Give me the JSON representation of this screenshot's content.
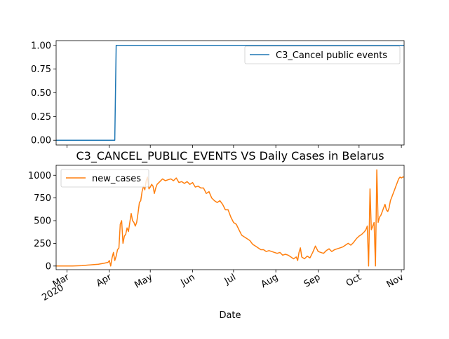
{
  "chart_data": [
    {
      "type": "line",
      "title": "",
      "xlabel": "",
      "ylabel": "",
      "ylim": [
        -0.05,
        1.05
      ],
      "yticks": [
        0.0,
        0.25,
        0.5,
        0.75,
        1.0
      ],
      "ytick_labels": [
        "0.00",
        "0.25",
        "0.50",
        "0.75",
        "1.00"
      ],
      "grid": false,
      "legend_position": "upper right",
      "series": [
        {
          "name": "C3_Cancel public events",
          "color": "#1f77b4",
          "x": [
            "2020-02-22",
            "2020-04-05",
            "2020-04-06",
            "2020-11-03"
          ],
          "y": [
            0,
            0,
            1,
            1
          ]
        }
      ]
    },
    {
      "type": "line",
      "title": "C3_CANCEL_PUBLIC_EVENTS VS Daily Cases in Belarus",
      "xlabel": "Date",
      "ylabel": "",
      "ylim": [
        -40,
        1110
      ],
      "yticks": [
        0,
        250,
        500,
        750,
        1000
      ],
      "ytick_labels": [
        "0",
        "250",
        "500",
        "750",
        "1000"
      ],
      "xlim": [
        "2020-02-22",
        "2020-11-03"
      ],
      "xticks": [
        {
          "date": "2020-03-01",
          "label": "Mar",
          "sublabel": "2020"
        },
        {
          "date": "2020-04-01",
          "label": "Apr",
          "sublabel": ""
        },
        {
          "date": "2020-05-01",
          "label": "May",
          "sublabel": ""
        },
        {
          "date": "2020-06-01",
          "label": "Jun",
          "sublabel": ""
        },
        {
          "date": "2020-07-01",
          "label": "Jul",
          "sublabel": ""
        },
        {
          "date": "2020-08-01",
          "label": "Aug",
          "sublabel": ""
        },
        {
          "date": "2020-09-01",
          "label": "Sep",
          "sublabel": ""
        },
        {
          "date": "2020-10-01",
          "label": "Oct",
          "sublabel": ""
        },
        {
          "date": "2020-11-01",
          "label": "Nov",
          "sublabel": ""
        }
      ],
      "grid": false,
      "legend_position": "upper left",
      "series": [
        {
          "name": "new_cases",
          "color": "#ff7f0e",
          "x": [
            "2020-02-22",
            "2020-03-05",
            "2020-03-12",
            "2020-03-16",
            "2020-03-20",
            "2020-03-24",
            "2020-03-28",
            "2020-03-31",
            "2020-04-01",
            "2020-04-02",
            "2020-04-03",
            "2020-04-04",
            "2020-04-05",
            "2020-04-06",
            "2020-04-07",
            "2020-04-08",
            "2020-04-09",
            "2020-04-10",
            "2020-04-11",
            "2020-04-12",
            "2020-04-13",
            "2020-04-14",
            "2020-04-15",
            "2020-04-16",
            "2020-04-17",
            "2020-04-18",
            "2020-04-19",
            "2020-04-20",
            "2020-04-21",
            "2020-04-22",
            "2020-04-23",
            "2020-04-24",
            "2020-04-25",
            "2020-04-26",
            "2020-04-27",
            "2020-04-28",
            "2020-04-29",
            "2020-04-30",
            "2020-05-01",
            "2020-05-02",
            "2020-05-03",
            "2020-05-04",
            "2020-05-05",
            "2020-05-06",
            "2020-05-08",
            "2020-05-10",
            "2020-05-12",
            "2020-05-14",
            "2020-05-16",
            "2020-05-18",
            "2020-05-20",
            "2020-05-22",
            "2020-05-24",
            "2020-05-26",
            "2020-05-28",
            "2020-05-30",
            "2020-06-01",
            "2020-06-03",
            "2020-06-05",
            "2020-06-07",
            "2020-06-09",
            "2020-06-11",
            "2020-06-13",
            "2020-06-15",
            "2020-06-17",
            "2020-06-19",
            "2020-06-21",
            "2020-06-23",
            "2020-06-25",
            "2020-06-27",
            "2020-06-29",
            "2020-07-01",
            "2020-07-03",
            "2020-07-05",
            "2020-07-07",
            "2020-07-09",
            "2020-07-11",
            "2020-07-13",
            "2020-07-15",
            "2020-07-17",
            "2020-07-19",
            "2020-07-21",
            "2020-07-23",
            "2020-07-25",
            "2020-07-27",
            "2020-07-29",
            "2020-07-31",
            "2020-08-02",
            "2020-08-04",
            "2020-08-06",
            "2020-08-08",
            "2020-08-10",
            "2020-08-12",
            "2020-08-14",
            "2020-08-16",
            "2020-08-17",
            "2020-08-18",
            "2020-08-19",
            "2020-08-20",
            "2020-08-22",
            "2020-08-24",
            "2020-08-26",
            "2020-08-28",
            "2020-08-30",
            "2020-09-01",
            "2020-09-03",
            "2020-09-05",
            "2020-09-07",
            "2020-09-09",
            "2020-09-11",
            "2020-09-13",
            "2020-09-15",
            "2020-09-17",
            "2020-09-19",
            "2020-09-21",
            "2020-09-23",
            "2020-09-25",
            "2020-09-27",
            "2020-09-29",
            "2020-10-01",
            "2020-10-03",
            "2020-10-05",
            "2020-10-06",
            "2020-10-07",
            "2020-10-08",
            "2020-10-09",
            "2020-10-10",
            "2020-10-11",
            "2020-10-12",
            "2020-10-13",
            "2020-10-14",
            "2020-10-15",
            "2020-10-16",
            "2020-10-17",
            "2020-10-18",
            "2020-10-19",
            "2020-10-20",
            "2020-10-21",
            "2020-10-22",
            "2020-10-23",
            "2020-10-24",
            "2020-10-25",
            "2020-10-26",
            "2020-10-27",
            "2020-10-28",
            "2020-10-29",
            "2020-10-30",
            "2020-10-31",
            "2020-11-01",
            "2020-11-02",
            "2020-11-03"
          ],
          "y": [
            0,
            0,
            5,
            10,
            15,
            20,
            30,
            40,
            60,
            0,
            90,
            150,
            60,
            110,
            180,
            200,
            460,
            500,
            250,
            330,
            350,
            420,
            380,
            480,
            580,
            500,
            480,
            440,
            480,
            580,
            700,
            720,
            820,
            880,
            840,
            940,
            980,
            850,
            870,
            900,
            880,
            800,
            860,
            900,
            930,
            960,
            940,
            950,
            960,
            940,
            970,
            920,
            930,
            910,
            930,
            900,
            920,
            870,
            880,
            860,
            860,
            800,
            820,
            750,
            720,
            700,
            720,
            680,
            620,
            620,
            540,
            480,
            460,
            400,
            340,
            320,
            300,
            280,
            240,
            220,
            200,
            180,
            180,
            160,
            170,
            160,
            150,
            140,
            150,
            120,
            130,
            120,
            100,
            80,
            100,
            60,
            150,
            200,
            100,
            80,
            110,
            90,
            150,
            220,
            160,
            150,
            140,
            170,
            190,
            160,
            180,
            190,
            200,
            210,
            230,
            250,
            230,
            260,
            300,
            330,
            350,
            380,
            400,
            440,
            0,
            850,
            400,
            440,
            480,
            0,
            1060,
            480,
            540,
            560,
            600,
            640,
            680,
            620,
            600,
            640,
            720,
            760,
            800,
            840,
            880,
            920,
            960,
            980,
            970,
            980,
            980
          ]
        }
      ]
    }
  ]
}
